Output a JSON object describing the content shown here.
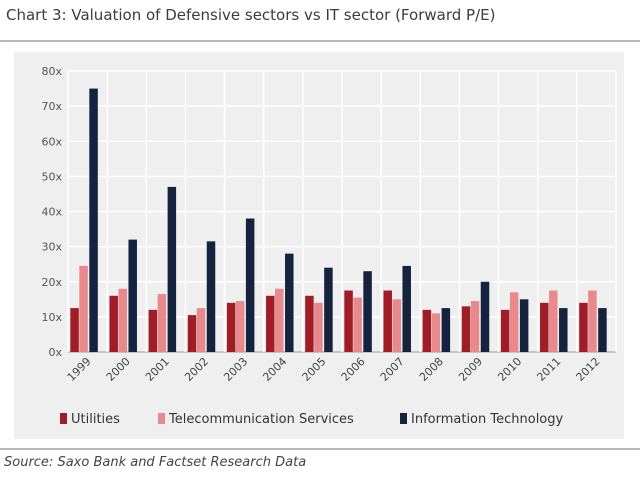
{
  "title": "Chart 3: Valuation of Defensive sectors vs IT sector (Forward P/E)",
  "source": "Source: Saxo Bank and Factset Research Data",
  "chart_data": {
    "type": "bar",
    "categories": [
      "1999",
      "2000",
      "2001",
      "2002",
      "2003",
      "2004",
      "2005",
      "2006",
      "2007",
      "2008",
      "2009",
      "2010",
      "2011",
      "2012"
    ],
    "series": [
      {
        "name": "Utilities",
        "color": "#a01c27",
        "values": [
          12.5,
          16,
          12,
          10.5,
          14,
          16,
          16,
          17.5,
          17.5,
          12,
          13,
          12,
          14,
          14
        ]
      },
      {
        "name": "Telecommunication Services",
        "color": "#e8898b",
        "values": [
          24.5,
          18,
          16.5,
          12.5,
          14.5,
          18,
          14,
          15.5,
          15,
          11,
          14.5,
          17,
          17.5,
          17.5
        ]
      },
      {
        "name": "Information Technology",
        "color": "#15233f",
        "values": [
          75,
          32,
          47,
          31.5,
          38,
          28,
          24,
          23,
          24.5,
          12.5,
          20,
          15,
          12.5,
          12.5
        ]
      }
    ],
    "yticks": [
      "0x",
      "10x",
      "20x",
      "30x",
      "40x",
      "50x",
      "60x",
      "70x",
      "80x"
    ],
    "ylim": [
      0,
      80
    ],
    "xlabel": "",
    "ylabel": "",
    "grid": true,
    "legend": "bottom"
  }
}
